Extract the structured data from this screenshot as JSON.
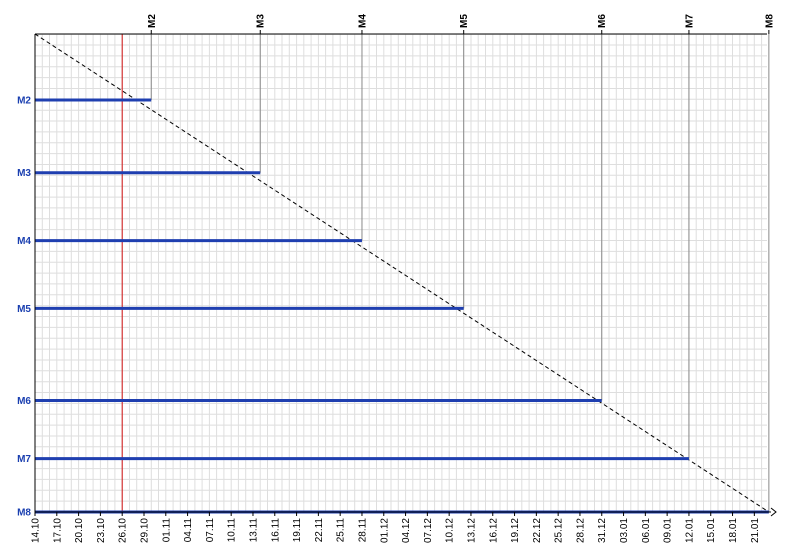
{
  "chart_data": {
    "type": "milestone-trend",
    "title": "",
    "xlabel": "",
    "ylabel": "",
    "x_ticks": [
      "14.10",
      "17.10",
      "20.10",
      "23.10",
      "26.10",
      "29.10",
      "01.11",
      "04.11",
      "07.11",
      "10.11",
      "13.11",
      "16.11",
      "19.11",
      "22.11",
      "25.11",
      "28.11",
      "01.12",
      "04.12",
      "07.12",
      "10.12",
      "13.12",
      "16.12",
      "19.12",
      "22.12",
      "25.12",
      "28.12",
      "31.12",
      "03.01",
      "06.01",
      "09.01",
      "12.01",
      "15.01",
      "18.01",
      "21.01"
    ],
    "grid": true,
    "today_line_x_date": "26.10",
    "milestones": [
      {
        "name": "M2",
        "date": "30.10"
      },
      {
        "name": "M3",
        "date": "14.11"
      },
      {
        "name": "M4",
        "date": "28.11"
      },
      {
        "name": "M5",
        "date": "12.12"
      },
      {
        "name": "M6",
        "date": "31.12"
      },
      {
        "name": "M7",
        "date": "12.01"
      },
      {
        "name": "M8",
        "date": "23.01"
      }
    ],
    "colors": {
      "milestone_bar": "#1f3fb0",
      "today_line": "#d01010",
      "grid": "#dedede",
      "diagonal": "#000000",
      "label": "#1a3fb0"
    }
  }
}
